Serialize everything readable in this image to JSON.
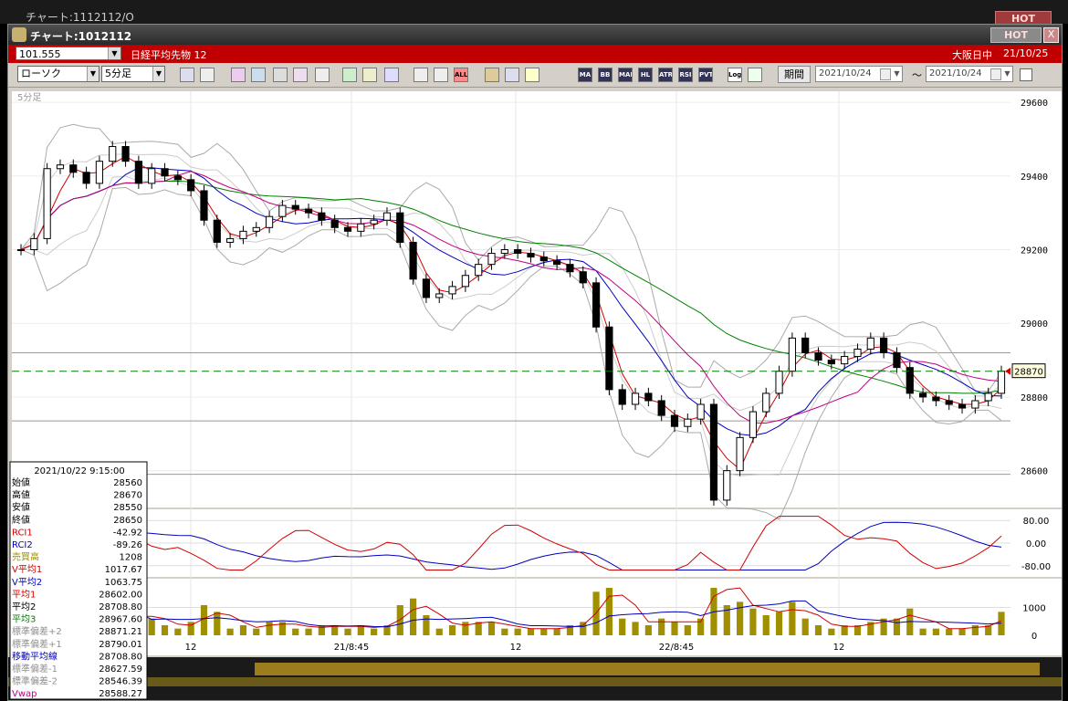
{
  "background_window": {
    "title": "チャート:1112112/O",
    "hot_label": "HOT"
  },
  "window": {
    "title": "チャート:1012112",
    "hot_label": "HOT",
    "close_label": "X"
  },
  "info_row": {
    "code": "101.555",
    "instrument": "日経平均先物 12",
    "session": "大阪日中",
    "date": "21/10/25"
  },
  "toolbar": {
    "chart_type": "ローソク",
    "timeframe": "5分足",
    "period_label": "期間",
    "date_from": "2021/10/24",
    "date_to": "2021/10/24",
    "tilde": "～",
    "buttons": [
      "",
      "",
      "",
      "",
      "",
      "",
      "",
      "",
      "",
      "",
      "",
      "",
      "ALL",
      "",
      "",
      "",
      "MA",
      "BB",
      "MAE",
      "HL",
      "ATR",
      "RSI",
      "PVT",
      "Log",
      ""
    ]
  },
  "chart_data": {
    "type": "line",
    "timeframe_label": "5分足",
    "price_axis": {
      "ticks": [
        29600,
        29400,
        29200,
        29000,
        28800,
        28600
      ],
      "ylim": [
        28500,
        29630
      ]
    },
    "current_price": 28870,
    "time_labels": [
      "12",
      "21/8:45",
      "12",
      "22/8:45",
      "12"
    ],
    "close_series": [
      29200,
      29230,
      29420,
      29430,
      29410,
      29380,
      29440,
      29480,
      29440,
      29380,
      29420,
      29400,
      29390,
      29360,
      29280,
      29220,
      29230,
      29250,
      29260,
      29290,
      29320,
      29310,
      29300,
      29280,
      29260,
      29250,
      29270,
      29280,
      29300,
      29220,
      29120,
      29070,
      29080,
      29100,
      29130,
      29160,
      29190,
      29200,
      29190,
      29180,
      29170,
      29160,
      29140,
      29110,
      28990,
      28820,
      28780,
      28810,
      28790,
      28750,
      28720,
      28740,
      28780,
      28520,
      28600,
      28690,
      28760,
      28810,
      28870,
      28960,
      28920,
      28900,
      28890,
      28910,
      28930,
      28960,
      28920,
      28880,
      28810,
      28800,
      28790,
      28780,
      28770,
      28790,
      28810,
      28870
    ],
    "oscillator": {
      "ticks": [
        "80.00",
        "0.00",
        "-80.00"
      ]
    },
    "volume": {
      "ticks": [
        "1000",
        "0"
      ]
    }
  },
  "info_panel": {
    "datetime": "2021/10/22 9:15:00",
    "rows": [
      {
        "label": "始値",
        "value": "28560",
        "color": "#000000"
      },
      {
        "label": "高値",
        "value": "28670",
        "color": "#000000"
      },
      {
        "label": "安値",
        "value": "28550",
        "color": "#000000"
      },
      {
        "label": "終値",
        "value": "28650",
        "color": "#000000"
      },
      {
        "label": "RCI1",
        "value": "-42.92",
        "color": "#d00000"
      },
      {
        "label": "RCI2",
        "value": "-89.26",
        "color": "#0000c0"
      },
      {
        "label": "売買高",
        "value": "1208",
        "color": "#a09000"
      },
      {
        "label": "V平均1",
        "value": "1017.67",
        "color": "#d00000"
      },
      {
        "label": "V平均2",
        "value": "1063.75",
        "color": "#0000c0"
      },
      {
        "label": "平均1",
        "value": "28602.00",
        "color": "#d00000"
      },
      {
        "label": "平均2",
        "value": "28708.80",
        "color": "#000000"
      },
      {
        "label": "平均3",
        "value": "28967.60",
        "color": "#008000"
      },
      {
        "label": "標準偏差+2",
        "value": "28871.21",
        "color": "#909090"
      },
      {
        "label": "標準偏差+1",
        "value": "28790.01",
        "color": "#909090"
      },
      {
        "label": "移動平均線",
        "value": "28708.80",
        "color": "#0000c0"
      },
      {
        "label": "標準偏差-1",
        "value": "28627.59",
        "color": "#909090"
      },
      {
        "label": "標準偏差-2",
        "value": "28546.39",
        "color": "#909090"
      },
      {
        "label": "Vwap",
        "value": "28588.27",
        "color": "#c00080"
      }
    ]
  }
}
